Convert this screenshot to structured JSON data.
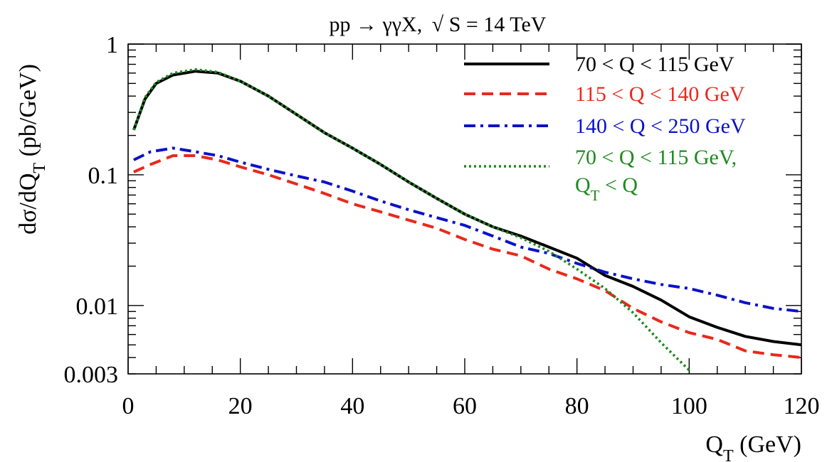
{
  "chart_data": {
    "type": "line",
    "title_parts": {
      "process": "pp → γγX,",
      "sqrt": "√",
      "energy": "S = 14 TeV"
    },
    "xlabel": {
      "main": "Q",
      "sub": "T",
      "rest": " (GeV)"
    },
    "ylabel": {
      "head": "dσ/dQ",
      "sub": "T",
      "rest": " (pb/GeV)"
    },
    "xlim": [
      0,
      120
    ],
    "ylim": [
      0.003,
      1
    ],
    "yscale": "log",
    "x_ticks": [
      0,
      20,
      40,
      60,
      80,
      100,
      120
    ],
    "x_tick_labels": [
      "0",
      "20",
      "40",
      "60",
      "80",
      "100",
      "120"
    ],
    "y_ticks": [
      1,
      0.1,
      0.01,
      0.003
    ],
    "y_tick_labels": [
      "1",
      "0.1",
      "0.01",
      "0.003"
    ],
    "legend_position": "top-right",
    "series": [
      {
        "name": "70 < Q < 115 GeV",
        "color": "#000000",
        "style": "solid",
        "x": [
          1,
          3,
          5,
          8,
          12,
          16,
          20,
          25,
          30,
          35,
          40,
          45,
          50,
          55,
          60,
          65,
          70,
          75,
          80,
          85,
          90,
          95,
          100,
          105,
          110,
          115,
          120
        ],
        "y": [
          0.22,
          0.38,
          0.5,
          0.58,
          0.62,
          0.6,
          0.52,
          0.4,
          0.29,
          0.21,
          0.16,
          0.12,
          0.088,
          0.066,
          0.05,
          0.04,
          0.034,
          0.028,
          0.023,
          0.017,
          0.014,
          0.011,
          0.0082,
          0.0068,
          0.0058,
          0.0053,
          0.005
        ]
      },
      {
        "name": "115 < Q < 140 GeV",
        "color": "#e8291c",
        "style": "dashed",
        "x": [
          1,
          4,
          8,
          12,
          16,
          20,
          25,
          30,
          35,
          40,
          45,
          50,
          55,
          60,
          65,
          70,
          75,
          80,
          85,
          90,
          95,
          100,
          105,
          110,
          115,
          120
        ],
        "y": [
          0.105,
          0.12,
          0.14,
          0.14,
          0.13,
          0.115,
          0.1,
          0.085,
          0.072,
          0.06,
          0.052,
          0.045,
          0.039,
          0.032,
          0.027,
          0.024,
          0.019,
          0.016,
          0.013,
          0.0095,
          0.0075,
          0.0062,
          0.0055,
          0.0045,
          0.0042,
          0.004
        ]
      },
      {
        "name": "140 < Q < 250 GeV",
        "color": "#0a12c8",
        "style": "dashdot",
        "x": [
          1,
          4,
          8,
          12,
          16,
          20,
          25,
          30,
          35,
          40,
          45,
          50,
          55,
          60,
          65,
          70,
          75,
          80,
          85,
          90,
          95,
          100,
          105,
          110,
          115,
          120
        ],
        "y": [
          0.13,
          0.15,
          0.16,
          0.15,
          0.14,
          0.125,
          0.11,
          0.098,
          0.088,
          0.075,
          0.063,
          0.054,
          0.047,
          0.041,
          0.034,
          0.028,
          0.025,
          0.021,
          0.018,
          0.016,
          0.0145,
          0.0135,
          0.012,
          0.0105,
          0.0095,
          0.009
        ]
      },
      {
        "name": "70 < Q < 115 GeV,",
        "name_line2": {
          "main": "Q",
          "sub": "T",
          "rest": " < Q"
        },
        "color": "#1e8a1e",
        "style": "dotted",
        "x": [
          1,
          3,
          5,
          8,
          12,
          16,
          20,
          25,
          30,
          35,
          40,
          45,
          50,
          55,
          60,
          65,
          70,
          75,
          80,
          85,
          90,
          95,
          100
        ],
        "y": [
          0.22,
          0.39,
          0.51,
          0.6,
          0.64,
          0.61,
          0.52,
          0.4,
          0.29,
          0.21,
          0.16,
          0.12,
          0.088,
          0.066,
          0.05,
          0.04,
          0.033,
          0.026,
          0.019,
          0.0135,
          0.0088,
          0.0052,
          0.0032
        ]
      }
    ]
  }
}
